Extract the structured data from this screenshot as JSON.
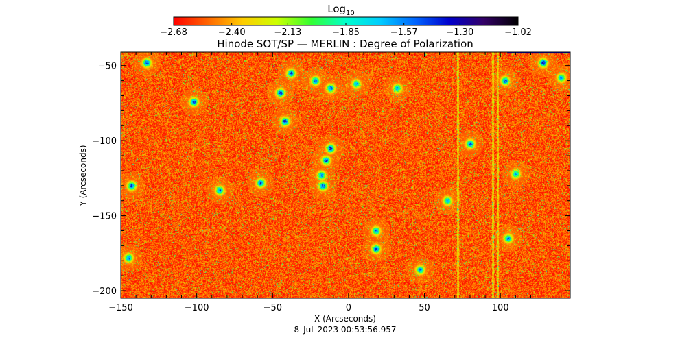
{
  "chart_data": {
    "type": "heatmap",
    "title": "Hinode SOT/SP — MERLIN : Degree of Polarization",
    "xlabel": "X (Arcseconds)",
    "ylabel": "Y (Arcseconds)",
    "date_label": "8–Jul–2023 00:53:56.957",
    "xlim": [
      -150,
      146
    ],
    "ylim": [
      -205,
      -41
    ],
    "x_ticks": [
      "−150",
      "−100",
      "−50",
      "0",
      "50",
      "100"
    ],
    "x_tick_values": [
      -150,
      -100,
      -50,
      0,
      50,
      100
    ],
    "y_ticks": [
      "−50",
      "−100",
      "−150",
      "−200"
    ],
    "y_tick_values": [
      -50,
      -100,
      -150,
      -200
    ],
    "colorbar": {
      "title": "Log",
      "title_subscript": "10",
      "range": [
        -2.68,
        -1.02
      ],
      "tick_labels": [
        "−2.68",
        "−2.40",
        "−2.13",
        "−1.85",
        "−1.57",
        "−1.30",
        "−1.02"
      ],
      "tick_values": [
        -2.68,
        -2.4,
        -2.13,
        -1.85,
        -1.57,
        -1.3,
        -1.02
      ],
      "colormap": [
        "#ff0000",
        "#ff6600",
        "#ffcc00",
        "#ccff00",
        "#33ff33",
        "#00ffcc",
        "#00ccff",
        "#0066ff",
        "#0000cc",
        "#330066",
        "#000000"
      ]
    },
    "grid": false,
    "dominant_level": -2.55,
    "features": [
      {
        "x": -133,
        "y": -48,
        "value": -1.35
      },
      {
        "x": -38,
        "y": -55,
        "value": -1.4
      },
      {
        "x": -22,
        "y": -60,
        "value": -1.45
      },
      {
        "x": -12,
        "y": -65,
        "value": -1.4
      },
      {
        "x": 5,
        "y": -62,
        "value": -1.6
      },
      {
        "x": -45,
        "y": -68,
        "value": -1.35
      },
      {
        "x": -102,
        "y": -74,
        "value": -1.4
      },
      {
        "x": -42,
        "y": -87,
        "value": -1.3
      },
      {
        "x": -12,
        "y": -105,
        "value": -1.3
      },
      {
        "x": -15,
        "y": -113,
        "value": -1.4
      },
      {
        "x": -18,
        "y": -123,
        "value": -1.5
      },
      {
        "x": -17,
        "y": -130,
        "value": -1.35
      },
      {
        "x": -58,
        "y": -128,
        "value": -1.35
      },
      {
        "x": -143,
        "y": -130,
        "value": -1.35
      },
      {
        "x": -85,
        "y": -133,
        "value": -1.45
      },
      {
        "x": 80,
        "y": -102,
        "value": -1.4
      },
      {
        "x": 18,
        "y": -160,
        "value": -1.5
      },
      {
        "x": 18,
        "y": -172,
        "value": -1.4
      },
      {
        "x": 103,
        "y": -60,
        "value": -1.45
      },
      {
        "x": 128,
        "y": -48,
        "value": -1.3
      },
      {
        "x": 140,
        "y": -58,
        "value": -1.55
      },
      {
        "x": 105,
        "y": -165,
        "value": -1.5
      },
      {
        "x": -145,
        "y": -178,
        "value": -1.5
      },
      {
        "x": 47,
        "y": -186,
        "value": -1.5
      },
      {
        "x": 32,
        "y": -65,
        "value": -1.55
      },
      {
        "x": 65,
        "y": -140,
        "value": -1.6
      },
      {
        "x": 110,
        "y": -122,
        "value": -1.6
      }
    ],
    "vertical_streaks_x": [
      72,
      95,
      98
    ]
  }
}
